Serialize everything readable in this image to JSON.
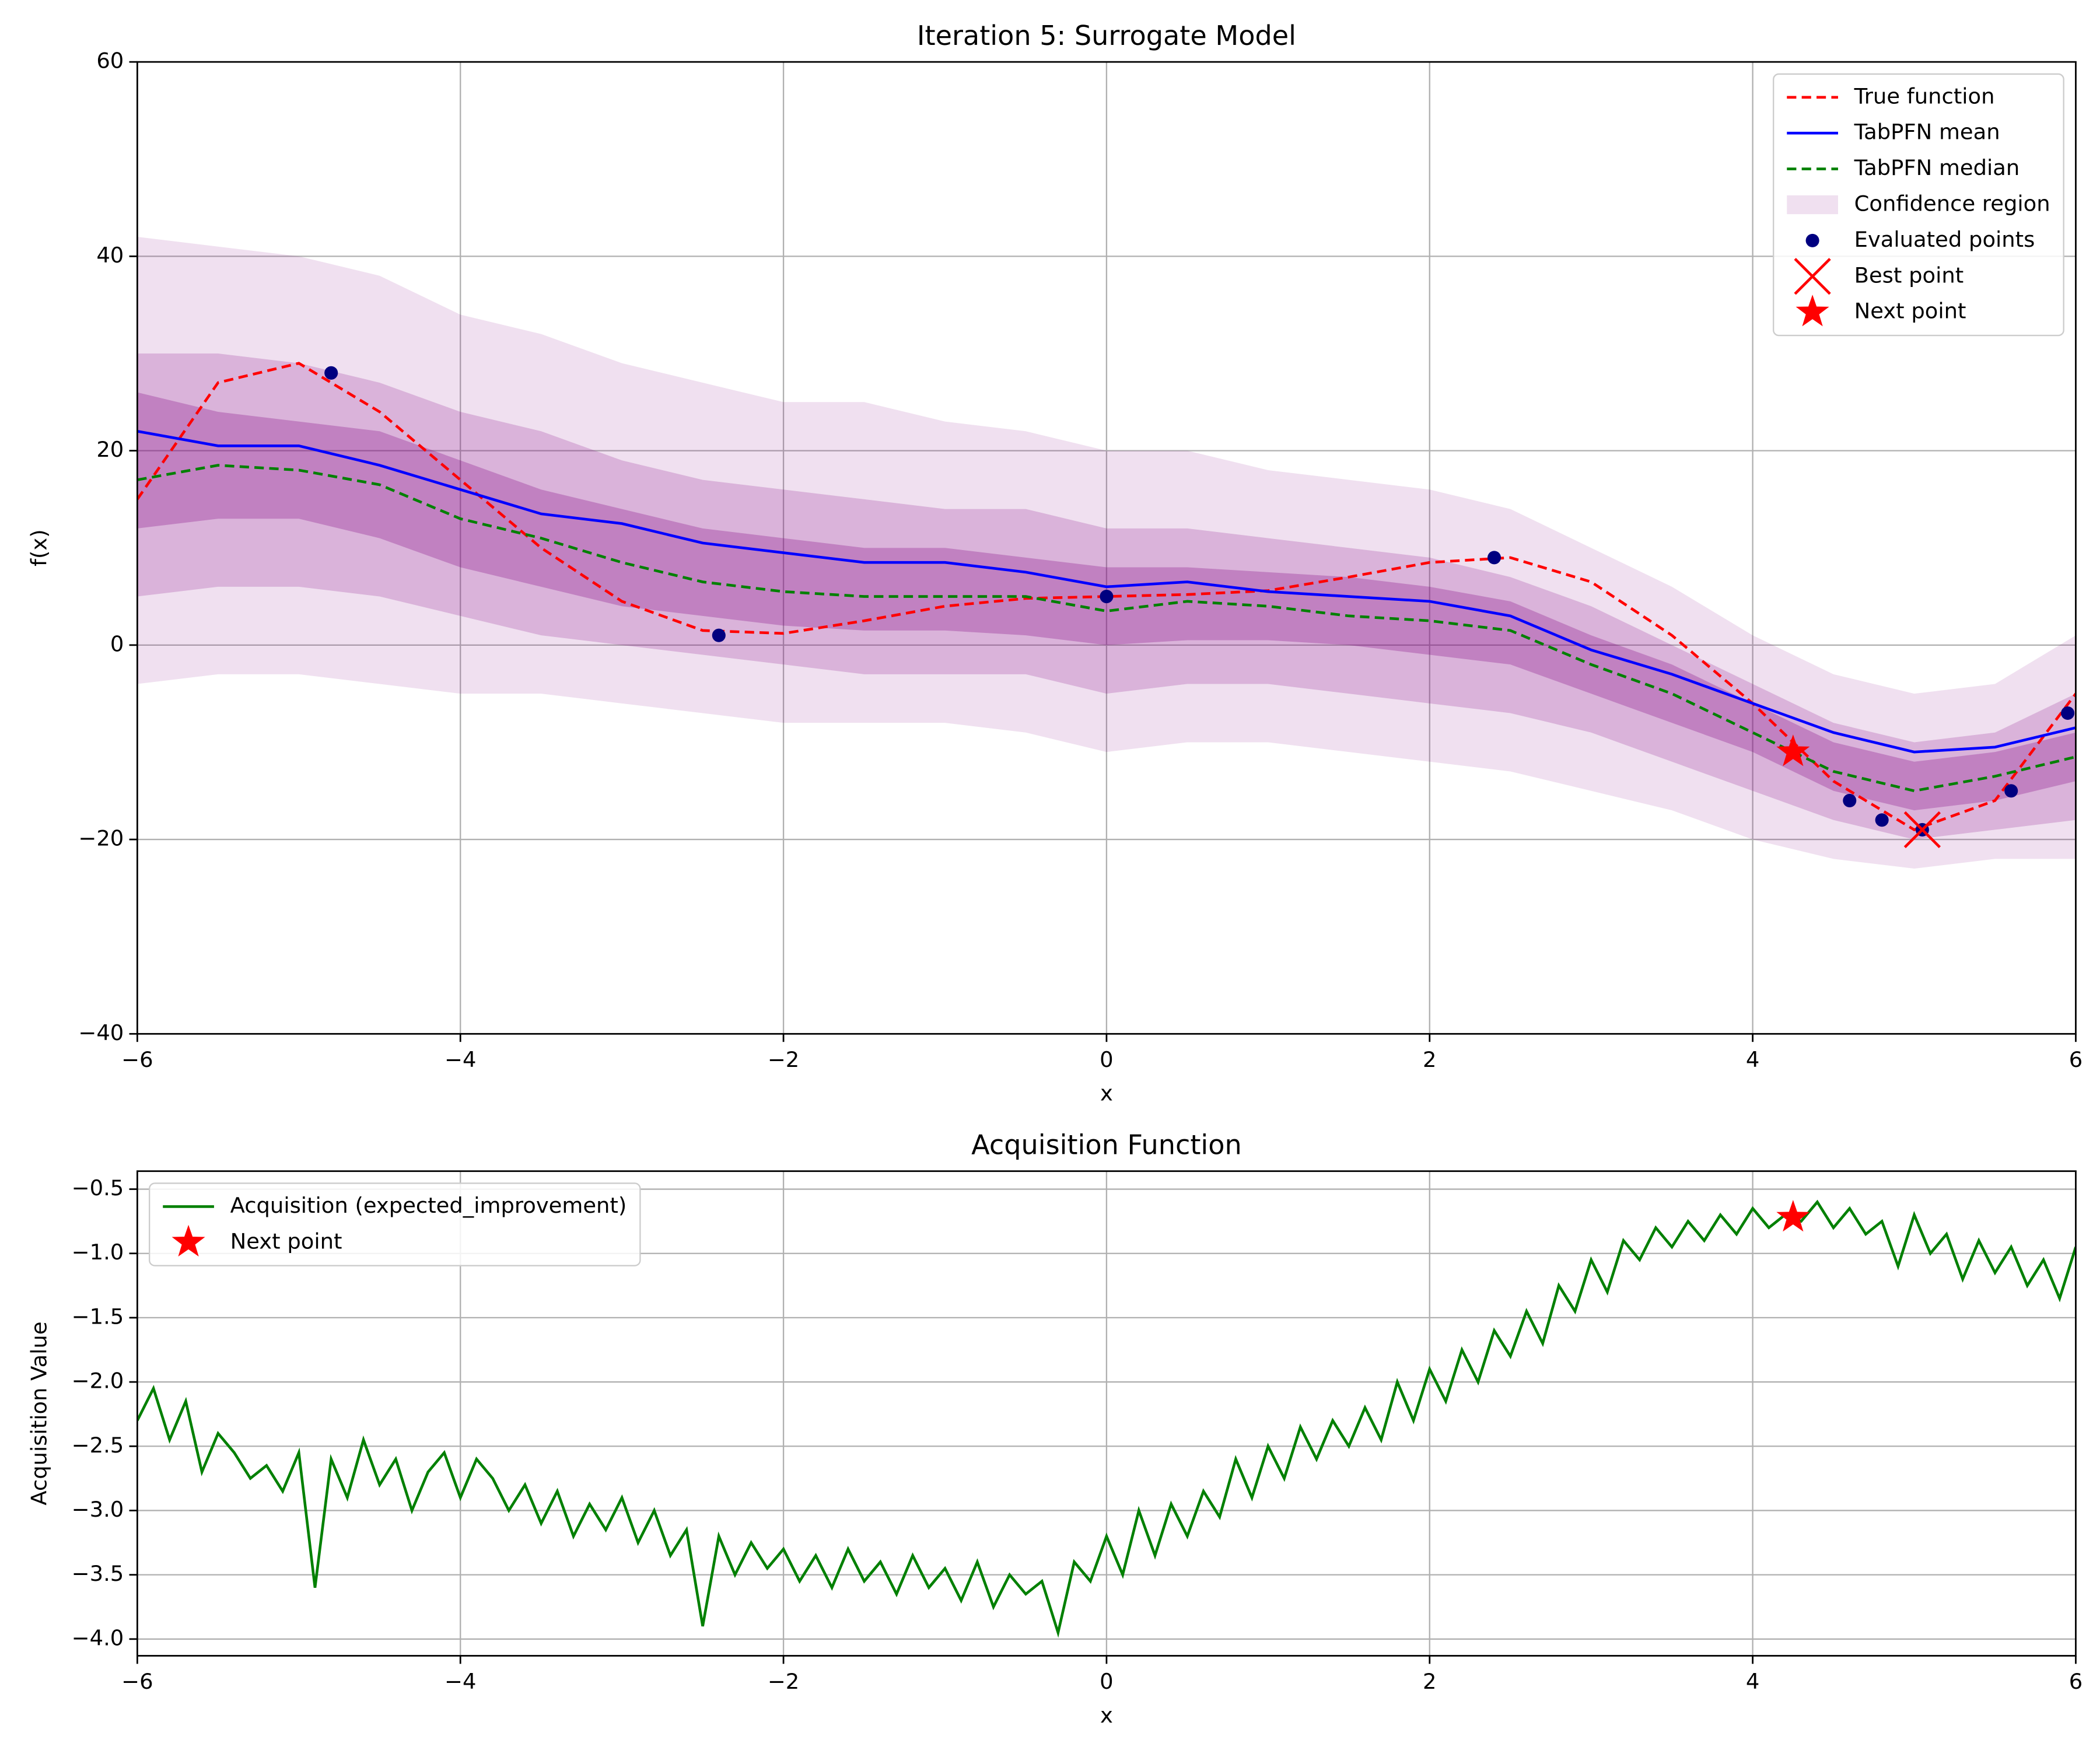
{
  "chart_data": [
    {
      "type": "line",
      "title": "Iteration 5: Surrogate Model",
      "xlabel": "x",
      "ylabel": "f(x)",
      "xlim": [
        -6,
        6
      ],
      "ylim": [
        -40,
        60
      ],
      "xticks": [
        {
          "value": -6,
          "label": "−6"
        },
        {
          "value": -4,
          "label": "−4"
        },
        {
          "value": -2,
          "label": "−2"
        },
        0,
        2,
        4,
        6
      ],
      "yticks": [
        {
          "value": -40,
          "label": "−40"
        },
        {
          "value": -20,
          "label": "−20"
        },
        0,
        20,
        40,
        60
      ],
      "grid": true,
      "legend": "upper right",
      "x": [
        -6,
        -5.5,
        -5,
        -4.5,
        -4,
        -3.5,
        -3,
        -2.5,
        -2,
        -1.5,
        -1,
        -0.5,
        0,
        0.5,
        1,
        1.5,
        2,
        2.5,
        3,
        3.5,
        4,
        4.5,
        5,
        5.5,
        6
      ],
      "series": [
        {
          "name": "True function",
          "color": "#ff0000",
          "dashed": true,
          "values": [
            15,
            27,
            29,
            24,
            17,
            10,
            4.5,
            1.5,
            1.2,
            2.5,
            4,
            4.8,
            5,
            5.2,
            5.6,
            7,
            8.5,
            9,
            6.5,
            1,
            -6,
            -14,
            -19,
            -16,
            -5
          ]
        },
        {
          "name": "TabPFN mean",
          "color": "#0000ff",
          "dashed": false,
          "values": [
            22,
            20.5,
            20.5,
            18.5,
            16,
            13.5,
            12.5,
            10.5,
            9.5,
            8.5,
            8.5,
            7.5,
            6,
            6.5,
            5.5,
            5,
            4.5,
            3,
            -0.5,
            -3,
            -6,
            -9,
            -11,
            -10.5,
            -8.5
          ]
        },
        {
          "name": "TabPFN median",
          "color": "#008000",
          "dashed": true,
          "values": [
            17,
            18.5,
            18,
            16.5,
            13,
            11,
            8.5,
            6.5,
            5.5,
            5,
            5,
            5,
            3.5,
            4.5,
            4,
            3,
            2.5,
            1.5,
            -2,
            -5,
            -9,
            -13,
            -15,
            -13.5,
            -11.5
          ]
        }
      ],
      "bands": {
        "name": "Confidence region",
        "color": "#800080",
        "levels": [
          {
            "upper": [
              42,
              41,
              40,
              38,
              34,
              32,
              29,
              27,
              25,
              25,
              23,
              22,
              20,
              20,
              18,
              17,
              16,
              14,
              10,
              6,
              1,
              -3,
              -5,
              -4,
              1
            ],
            "lower": [
              -4,
              -3,
              -3,
              -4,
              -5,
              -5,
              -6,
              -7,
              -8,
              -8,
              -8,
              -9,
              -11,
              -10,
              -10,
              -11,
              -12,
              -13,
              -15,
              -17,
              -20,
              -22,
              -23,
              -22,
              -22
            ]
          },
          {
            "upper": [
              30,
              30,
              29,
              27,
              24,
              22,
              19,
              17,
              16,
              15,
              14,
              14,
              12,
              12,
              11,
              10,
              9,
              7,
              4,
              0,
              -4,
              -8,
              -10,
              -9,
              -5
            ],
            "lower": [
              5,
              6,
              6,
              5,
              3,
              1,
              0,
              -1,
              -2,
              -3,
              -3,
              -3,
              -5,
              -4,
              -4,
              -5,
              -6,
              -7,
              -9,
              -12,
              -15,
              -18,
              -20,
              -19,
              -18
            ]
          },
          {
            "upper": [
              26,
              24,
              23,
              22,
              19,
              16,
              14,
              12,
              11,
              10,
              10,
              9,
              8,
              8,
              7.5,
              7,
              6,
              4.5,
              1,
              -2,
              -6,
              -10,
              -12,
              -11,
              -9
            ],
            "lower": [
              12,
              13,
              13,
              11,
              8,
              6,
              4,
              3,
              2,
              1.5,
              1.5,
              1,
              0,
              0.5,
              0.5,
              0,
              -1,
              -2,
              -5,
              -8,
              -11,
              -15,
              -17,
              -16,
              -14
            ]
          }
        ]
      },
      "points": [
        {
          "name": "Evaluated points",
          "color": "#000080",
          "marker": "circle",
          "x": [
            -4.8,
            -2.4,
            0,
            2.4,
            4.6,
            4.8,
            5.05,
            5.6,
            5.95
          ],
          "values": [
            28,
            1,
            5,
            9,
            -16,
            -18,
            -19,
            -15,
            -7
          ]
        },
        {
          "name": "Best point",
          "color": "#ff0000",
          "marker": "x",
          "x": [
            5.05
          ],
          "values": [
            -19
          ]
        },
        {
          "name": "Next point",
          "color": "#ff0000",
          "marker": "star",
          "x": [
            4.25
          ],
          "values": [
            -11
          ]
        }
      ]
    },
    {
      "type": "line",
      "title": "Acquisition Function",
      "xlabel": "x",
      "ylabel": "Acquisition Value",
      "xlim": [
        -6,
        6
      ],
      "ylim": [
        -4.13,
        -0.36
      ],
      "xticks": [
        {
          "value": -6,
          "label": "−6"
        },
        {
          "value": -4,
          "label": "−4"
        },
        {
          "value": -2,
          "label": "−2"
        },
        0,
        2,
        4,
        6
      ],
      "yticks": [
        {
          "value": -4,
          "label": "−4.0"
        },
        {
          "value": -3.5,
          "label": "−3.5"
        },
        {
          "value": -3,
          "label": "−3.0"
        },
        {
          "value": -2.5,
          "label": "−2.5"
        },
        {
          "value": -2,
          "label": "−2.0"
        },
        {
          "value": -1.5,
          "label": "−1.5"
        },
        {
          "value": -1,
          "label": "−1.0"
        },
        {
          "value": -0.5,
          "label": "−0.5"
        }
      ],
      "grid": true,
      "legend": "upper left",
      "x": [
        -6,
        -5.9,
        -5.8,
        -5.7,
        -5.6,
        -5.5,
        -5.4,
        -5.3,
        -5.2,
        -5.1,
        -5,
        -4.9,
        -4.8,
        -4.7,
        -4.6,
        -4.5,
        -4.4,
        -4.3,
        -4.2,
        -4.1,
        -4,
        -3.9,
        -3.8,
        -3.7,
        -3.6,
        -3.5,
        -3.4,
        -3.3,
        -3.2,
        -3.1,
        -3,
        -2.9,
        -2.8,
        -2.7,
        -2.6,
        -2.5,
        -2.4,
        -2.3,
        -2.2,
        -2.1,
        -2,
        -1.9,
        -1.8,
        -1.7,
        -1.6,
        -1.5,
        -1.4,
        -1.3,
        -1.2,
        -1.1,
        -1,
        -0.9,
        -0.8,
        -0.7,
        -0.6,
        -0.5,
        -0.4,
        -0.3,
        -0.2,
        -0.1,
        0,
        0.1,
        0.2,
        0.3,
        0.4,
        0.5,
        0.6,
        0.7,
        0.8,
        0.9,
        1,
        1.1,
        1.2,
        1.3,
        1.4,
        1.5,
        1.6,
        1.7,
        1.8,
        1.9,
        2,
        2.1,
        2.2,
        2.3,
        2.4,
        2.5,
        2.6,
        2.7,
        2.8,
        2.9,
        3,
        3.1,
        3.2,
        3.3,
        3.4,
        3.5,
        3.6,
        3.7,
        3.8,
        3.9,
        4,
        4.1,
        4.2,
        4.3,
        4.4,
        4.5,
        4.6,
        4.7,
        4.8,
        4.9,
        5,
        5.1,
        5.2,
        5.3,
        5.4,
        5.5,
        5.6,
        5.7,
        5.8,
        5.9,
        6
      ],
      "series": [
        {
          "name": "Acquisition (expected_improvement)",
          "color": "#008000",
          "dashed": false,
          "values": [
            -2.3,
            -2.05,
            -2.45,
            -2.15,
            -2.7,
            -2.4,
            -2.55,
            -2.75,
            -2.65,
            -2.85,
            -2.55,
            -3.6,
            -2.6,
            -2.9,
            -2.45,
            -2.8,
            -2.6,
            -3,
            -2.7,
            -2.55,
            -2.9,
            -2.6,
            -2.75,
            -3,
            -2.8,
            -3.1,
            -2.85,
            -3.2,
            -2.95,
            -3.15,
            -2.9,
            -3.25,
            -3,
            -3.35,
            -3.15,
            -3.9,
            -3.2,
            -3.5,
            -3.25,
            -3.45,
            -3.3,
            -3.55,
            -3.35,
            -3.6,
            -3.3,
            -3.55,
            -3.4,
            -3.65,
            -3.35,
            -3.6,
            -3.45,
            -3.7,
            -3.4,
            -3.75,
            -3.5,
            -3.65,
            -3.55,
            -3.95,
            -3.4,
            -3.55,
            -3.2,
            -3.5,
            -3,
            -3.35,
            -2.95,
            -3.2,
            -2.85,
            -3.05,
            -2.6,
            -2.9,
            -2.5,
            -2.75,
            -2.35,
            -2.6,
            -2.3,
            -2.5,
            -2.2,
            -2.45,
            -2,
            -2.3,
            -1.9,
            -2.15,
            -1.75,
            -2,
            -1.6,
            -1.8,
            -1.45,
            -1.7,
            -1.25,
            -1.45,
            -1.05,
            -1.3,
            -0.9,
            -1.05,
            -0.8,
            -0.95,
            -0.75,
            -0.9,
            -0.7,
            -0.85,
            -0.65,
            -0.8,
            -0.7,
            -0.75,
            -0.6,
            -0.8,
            -0.65,
            -0.85,
            -0.75,
            -1.1,
            -0.7,
            -1,
            -0.85,
            -1.2,
            -0.9,
            -1.15,
            -0.95,
            -1.25,
            -1.05,
            -1.35,
            -0.95
          ]
        }
      ],
      "points": [
        {
          "name": "Next point",
          "color": "#ff0000",
          "marker": "star",
          "x": [
            4.25
          ],
          "values": [
            -0.72
          ]
        }
      ]
    }
  ]
}
